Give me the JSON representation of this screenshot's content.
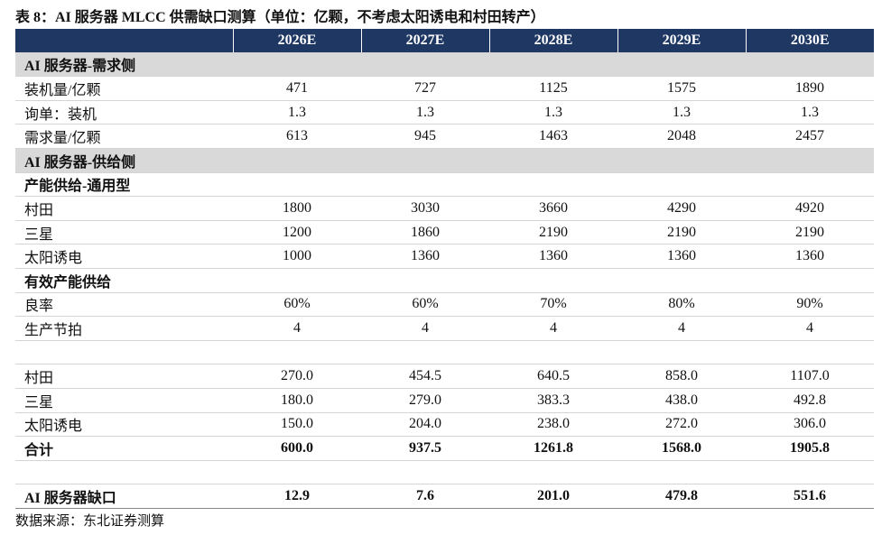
{
  "title": "表 8：AI 服务器 MLCC 供需缺口测算（单位：亿颗，不考虑太阳诱电和村田转产）",
  "table": {
    "columns": [
      "2026E",
      "2027E",
      "2028E",
      "2029E",
      "2030E"
    ],
    "blocks": [
      [
        {
          "label": "AI 服务器-需求侧",
          "style": "section"
        },
        {
          "label": "装机量/亿颗",
          "values": [
            "471",
            "727",
            "1125",
            "1575",
            "1890"
          ]
        },
        {
          "label": "询单：装机",
          "values": [
            "1.3",
            "1.3",
            "1.3",
            "1.3",
            "1.3"
          ]
        },
        {
          "label": "需求量/亿颗",
          "values": [
            "613",
            "945",
            "1463",
            "2048",
            "2457"
          ]
        },
        {
          "label": "AI 服务器-供给侧",
          "style": "section"
        },
        {
          "label": "产能供给-通用型",
          "style": "subsection"
        },
        {
          "label": "村田",
          "values": [
            "1800",
            "3030",
            "3660",
            "4290",
            "4920"
          ]
        },
        {
          "label": "三星",
          "values": [
            "1200",
            "1860",
            "2190",
            "2190",
            "2190"
          ]
        },
        {
          "label": "太阳诱电",
          "values": [
            "1000",
            "1360",
            "1360",
            "1360",
            "1360"
          ]
        },
        {
          "label": "有效产能供给",
          "style": "subsection"
        },
        {
          "label": "良率",
          "values": [
            "60%",
            "60%",
            "70%",
            "80%",
            "90%"
          ]
        },
        {
          "label": "生产节拍",
          "values": [
            "4",
            "4",
            "4",
            "4",
            "4"
          ]
        }
      ],
      [
        {
          "label": "村田",
          "values": [
            "270.0",
            "454.5",
            "640.5",
            "858.0",
            "1107.0"
          ]
        },
        {
          "label": "三星",
          "values": [
            "180.0",
            "279.0",
            "383.3",
            "438.0",
            "492.8"
          ]
        },
        {
          "label": "太阳诱电",
          "values": [
            "150.0",
            "204.0",
            "238.0",
            "272.0",
            "306.0"
          ]
        },
        {
          "label": "合计",
          "values": [
            "600.0",
            "937.5",
            "1261.8",
            "1568.0",
            "1905.8"
          ],
          "style": "total"
        }
      ],
      [
        {
          "label": "AI 服务器缺口",
          "values": [
            "12.9",
            "7.6",
            "201.0",
            "479.8",
            "551.6"
          ],
          "style": "total"
        }
      ]
    ]
  },
  "source": "数据来源：东北证券测算"
}
